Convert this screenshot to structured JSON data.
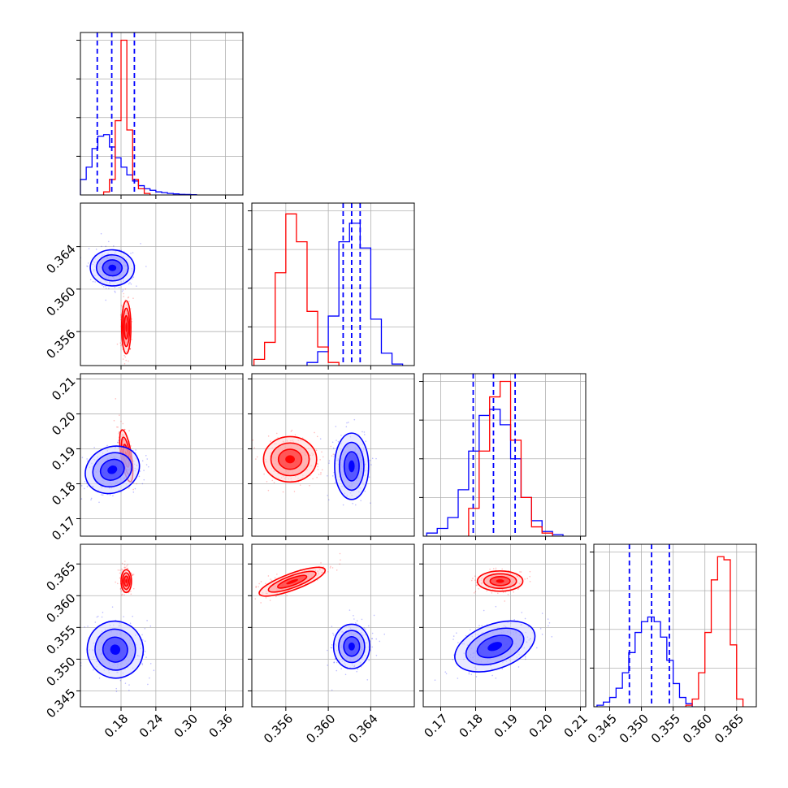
{
  "chart_data": {
    "type": "corner",
    "colors": {
      "red": "#ff0000",
      "blue": "#0000ff"
    },
    "series": [
      {
        "name": "",
        "color": "#ff0000"
      },
      {
        "name": "",
        "color": "#0000ff"
      }
    ],
    "parameters": [
      {
        "ticks": [
          "0.18",
          "0.24",
          "0.30",
          "0.36"
        ],
        "range": [
          0.11,
          0.39
        ]
      },
      {
        "ticks": [
          "0.356",
          "0.360",
          "0.364"
        ],
        "range": [
          0.3528,
          0.3681
        ]
      },
      {
        "ticks": [
          "0.17",
          "0.18",
          "0.19",
          "0.20",
          "0.21"
        ],
        "range": [
          0.165,
          0.2115
        ]
      },
      {
        "ticks": [
          "0.345",
          "0.350",
          "0.355",
          "0.360",
          "0.365"
        ],
        "range": [
          0.3425,
          0.3681
        ]
      }
    ],
    "blue_quantiles": [
      [
        0.139,
        0.164,
        0.203
      ],
      [
        0.3614,
        0.3622,
        0.363
      ],
      [
        0.1793,
        0.1851,
        0.1913
      ],
      [
        0.3481,
        0.3516,
        0.3544
      ]
    ],
    "centers": {
      "blue": {
        "means": [
          0.165,
          0.3622,
          0.1851,
          0.3518
        ]
      },
      "red": {
        "means": [
          0.189,
          0.3563,
          0.187,
          0.3626
        ]
      }
    },
    "histograms": [
      {
        "param": 0,
        "blue": {
          "x": [
            0.115,
            0.125,
            0.135,
            0.145,
            0.155,
            0.165,
            0.175,
            0.185,
            0.195,
            0.205,
            0.215,
            0.225,
            0.235,
            0.245,
            0.255,
            0.265,
            0.275,
            0.285,
            0.295,
            0.305
          ],
          "y": [
            10,
            18,
            30,
            38,
            39,
            31,
            24,
            18,
            13,
            9,
            6,
            4,
            3,
            2,
            1.5,
            1,
            0.7,
            0.4,
            0.3,
            0.2
          ]
        },
        "red": {
          "x": [
            0.155,
            0.165,
            0.175,
            0.185,
            0.195,
            0.205,
            0.215,
            0.225
          ],
          "y": [
            2,
            10,
            48,
            100,
            42,
            10,
            4,
            1
          ]
        },
        "ymax": 105
      },
      {
        "param": 1,
        "blue": {
          "x": [
            0.3585,
            0.3595,
            0.3605,
            0.3615,
            0.3625,
            0.3635,
            0.3645,
            0.3655,
            0.3665
          ],
          "y": [
            2,
            9,
            32,
            80,
            92,
            76,
            30,
            8,
            1
          ]
        },
        "red": {
          "x": [
            0.3535,
            0.3545,
            0.3555,
            0.3565,
            0.3575,
            0.3585,
            0.3595,
            0.3605
          ],
          "y": [
            4,
            15,
            60,
            98,
            80,
            35,
            12,
            2
          ]
        },
        "ymax": 105
      },
      {
        "param": 2,
        "blue": {
          "x": [
            0.1675,
            0.1705,
            0.1735,
            0.1765,
            0.1795,
            0.1825,
            0.1855,
            0.1885,
            0.1915,
            0.1945,
            0.1975,
            0.2005,
            0.2035
          ],
          "y": [
            2,
            5,
            12,
            30,
            55,
            78,
            82,
            72,
            50,
            25,
            10,
            3,
            1
          ]
        },
        "red": {
          "x": [
            0.1795,
            0.1825,
            0.1855,
            0.1885,
            0.1915,
            0.1945,
            0.1975,
            0.2005
          ],
          "y": [
            18,
            55,
            90,
            100,
            62,
            25,
            6,
            2
          ]
        },
        "ymax": 105
      },
      {
        "param": 3,
        "blue": {
          "x": [
            0.3435,
            0.3445,
            0.3455,
            0.3465,
            0.3475,
            0.3485,
            0.3495,
            0.3505,
            0.3515,
            0.3525,
            0.3535,
            0.3545,
            0.3555,
            0.3565,
            0.3575
          ],
          "y": [
            1,
            3,
            6,
            12,
            22,
            35,
            48,
            55,
            58,
            55,
            45,
            30,
            15,
            6,
            2
          ]
        },
        "red": {
          "x": [
            0.3575,
            0.3585,
            0.3595,
            0.3605,
            0.3615,
            0.3625,
            0.3635,
            0.3645,
            0.3655
          ],
          "y": [
            1,
            5,
            22,
            48,
            82,
            97,
            95,
            40,
            5
          ]
        },
        "ymax": 105
      }
    ],
    "pairs": [
      {
        "x": 0,
        "y": 1,
        "blue": {
          "cx": 0.165,
          "cy": 0.362,
          "rx": 0.038,
          "ry": 0.0017,
          "tilt": -0.05
        },
        "red": {
          "cx": 0.189,
          "cy": 0.3564,
          "rx": 0.008,
          "ry": 0.0025,
          "tilt": 0.0
        }
      },
      {
        "x": 0,
        "y": 2,
        "blue": {
          "cx": 0.165,
          "cy": 0.184,
          "rx": 0.048,
          "ry": 0.0065,
          "tilt": 0.55
        },
        "red": {
          "cx": 0.189,
          "cy": 0.188,
          "rx": 0.009,
          "ry": 0.0075,
          "tilt": 0.2
        }
      },
      {
        "x": 0,
        "y": 3,
        "blue": {
          "cx": 0.17,
          "cy": 0.3515,
          "rx": 0.048,
          "ry": 0.0045,
          "tilt": 0.6
        },
        "red": {
          "cx": 0.189,
          "cy": 0.3623,
          "rx": 0.009,
          "ry": 0.0018,
          "tilt": 0.0
        }
      },
      {
        "x": 1,
        "y": 2,
        "blue": {
          "cx": 0.3622,
          "cy": 0.185,
          "rx": 0.0016,
          "ry": 0.0095,
          "tilt": 0.0
        },
        "red": {
          "cx": 0.3564,
          "cy": 0.187,
          "rx": 0.0025,
          "ry": 0.0065,
          "tilt": 0.0
        }
      },
      {
        "x": 1,
        "y": 3,
        "blue": {
          "cx": 0.3622,
          "cy": 0.352,
          "rx": 0.0017,
          "ry": 0.0035,
          "tilt": 0.0
        },
        "red": {
          "cx": 0.3566,
          "cy": 0.3622,
          "rx": 0.0033,
          "ry": 0.0013,
          "tilt": 0.45
        }
      },
      {
        "x": 2,
        "y": 3,
        "blue": {
          "cx": 0.1855,
          "cy": 0.352,
          "rx": 0.012,
          "ry": 0.0035,
          "tilt": 0.45
        },
        "red": {
          "cx": 0.187,
          "cy": 0.3623,
          "rx": 0.0065,
          "ry": 0.0016,
          "tilt": 0.0
        }
      }
    ]
  }
}
